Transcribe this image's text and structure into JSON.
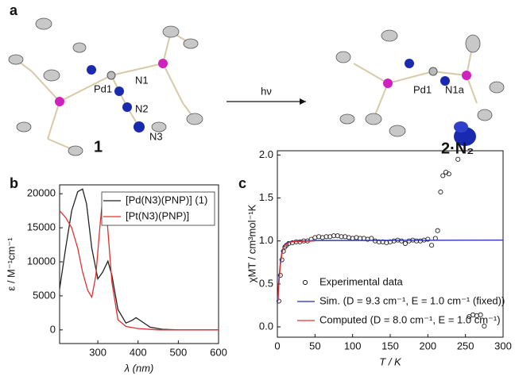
{
  "panel_a": {
    "panel_label": "a",
    "left": {
      "atoms": [
        "Pd1",
        "N1",
        "N2",
        "N3"
      ],
      "compound": "1"
    },
    "arrow_label": "hν",
    "right": {
      "atoms": [
        "Pd1",
        "N1a"
      ],
      "compound": "2·N₂"
    }
  },
  "chart_data": [
    {
      "type": "line",
      "panel_label": "b",
      "xlabel": "λ (nm)",
      "ylabel": "ε  /  M⁻¹cm⁻¹",
      "xlim": [
        205,
        600
      ],
      "ylim": [
        -2000,
        21300
      ],
      "xticks": [
        300,
        400,
        500,
        600
      ],
      "yticks": [
        0,
        5000,
        10000,
        15000,
        20000
      ],
      "series": [
        {
          "name": "[Pd(N3)(PNP)] (1)",
          "color": "#222222",
          "x": [
            205,
            220,
            235,
            250,
            262,
            272,
            285,
            300,
            312,
            325,
            335,
            350,
            370,
            385,
            395,
            410,
            430,
            460,
            500,
            550,
            600
          ],
          "values": [
            6000,
            12000,
            17500,
            20300,
            20700,
            18500,
            12000,
            7500,
            8500,
            10100,
            8000,
            3000,
            1000,
            1400,
            1800,
            1200,
            400,
            100,
            0,
            0,
            0
          ]
        },
        {
          "name": "[Pt(N3)(PNP)]",
          "color": "#e03030",
          "x": [
            205,
            220,
            235,
            250,
            262,
            275,
            285,
            295,
            305,
            313,
            322,
            335,
            350,
            370,
            400,
            450,
            500,
            550,
            600
          ],
          "values": [
            17500,
            16500,
            15000,
            12000,
            8500,
            5800,
            4800,
            8000,
            15000,
            20000,
            17000,
            7000,
            1500,
            500,
            200,
            0,
            0,
            0,
            0
          ]
        }
      ]
    },
    {
      "type": "line",
      "panel_label": "c",
      "xlabel": "T  /  K",
      "ylabel": "χMT  /  cm³mol⁻¹K",
      "xlim": [
        0,
        300
      ],
      "ylim": [
        -0.12,
        2.05
      ],
      "xticks": [
        0,
        50,
        100,
        150,
        200,
        250,
        300
      ],
      "yticks": [
        {
          "value": 0,
          "label": "0.0"
        },
        0.5,
        {
          "value": 1,
          "label": "1.0"
        },
        1.5,
        {
          "value": 2,
          "label": "2.0"
        }
      ],
      "series": [
        {
          "name": "Experimental data",
          "type": "scatter",
          "color": "#222222",
          "x": [
            2,
            4,
            6,
            8,
            10,
            12,
            15,
            20,
            25,
            30,
            35,
            40,
            45,
            50,
            55,
            60,
            65,
            70,
            75,
            80,
            85,
            90,
            95,
            100,
            105,
            110,
            115,
            120,
            125,
            130,
            135,
            140,
            145,
            150,
            155,
            160,
            165,
            170,
            175,
            180,
            185,
            190,
            195,
            200,
            205,
            210,
            213,
            217,
            220,
            224,
            228,
            240,
            255,
            260,
            265,
            270,
            275
          ],
          "values": [
            0.3,
            0.6,
            0.78,
            0.88,
            0.93,
            0.95,
            0.97,
            0.98,
            0.99,
            0.99,
            1.0,
            1.0,
            1.02,
            1.04,
            1.05,
            1.04,
            1.05,
            1.05,
            1.06,
            1.06,
            1.05,
            1.05,
            1.04,
            1.03,
            1.04,
            1.03,
            1.03,
            1.02,
            1.03,
            1.0,
            0.99,
            0.99,
            0.98,
            0.99,
            1.0,
            1.01,
            1.0,
            0.97,
            1.0,
            1.01,
            1.0,
            1.0,
            1.01,
            1.02,
            0.95,
            1.03,
            1.12,
            1.57,
            1.76,
            1.8,
            1.78,
            1.95,
            0.12,
            0.14,
            0.13,
            0.14,
            0.01
          ]
        },
        {
          "name": "Sim. (D = 9.3 cm⁻¹, E = 1.0 cm⁻¹ (fixed))",
          "color": "#1f2fb0",
          "x": [
            0,
            2,
            4,
            6,
            8,
            10,
            15,
            20,
            30,
            50,
            300
          ],
          "values": [
            0.3,
            0.55,
            0.75,
            0.87,
            0.93,
            0.96,
            0.985,
            0.995,
            1.0,
            1.005,
            1.01
          ]
        },
        {
          "name": "Computed (D = 8.0 cm⁻¹, E = 1.0 cm⁻¹)",
          "color": "#e03030",
          "x": [
            1,
            2,
            4,
            6,
            8,
            10,
            15,
            20,
            30,
            50
          ],
          "values": [
            0.3,
            0.5,
            0.72,
            0.85,
            0.92,
            0.95,
            0.98,
            0.99,
            0.995,
            1.0
          ]
        }
      ]
    }
  ]
}
